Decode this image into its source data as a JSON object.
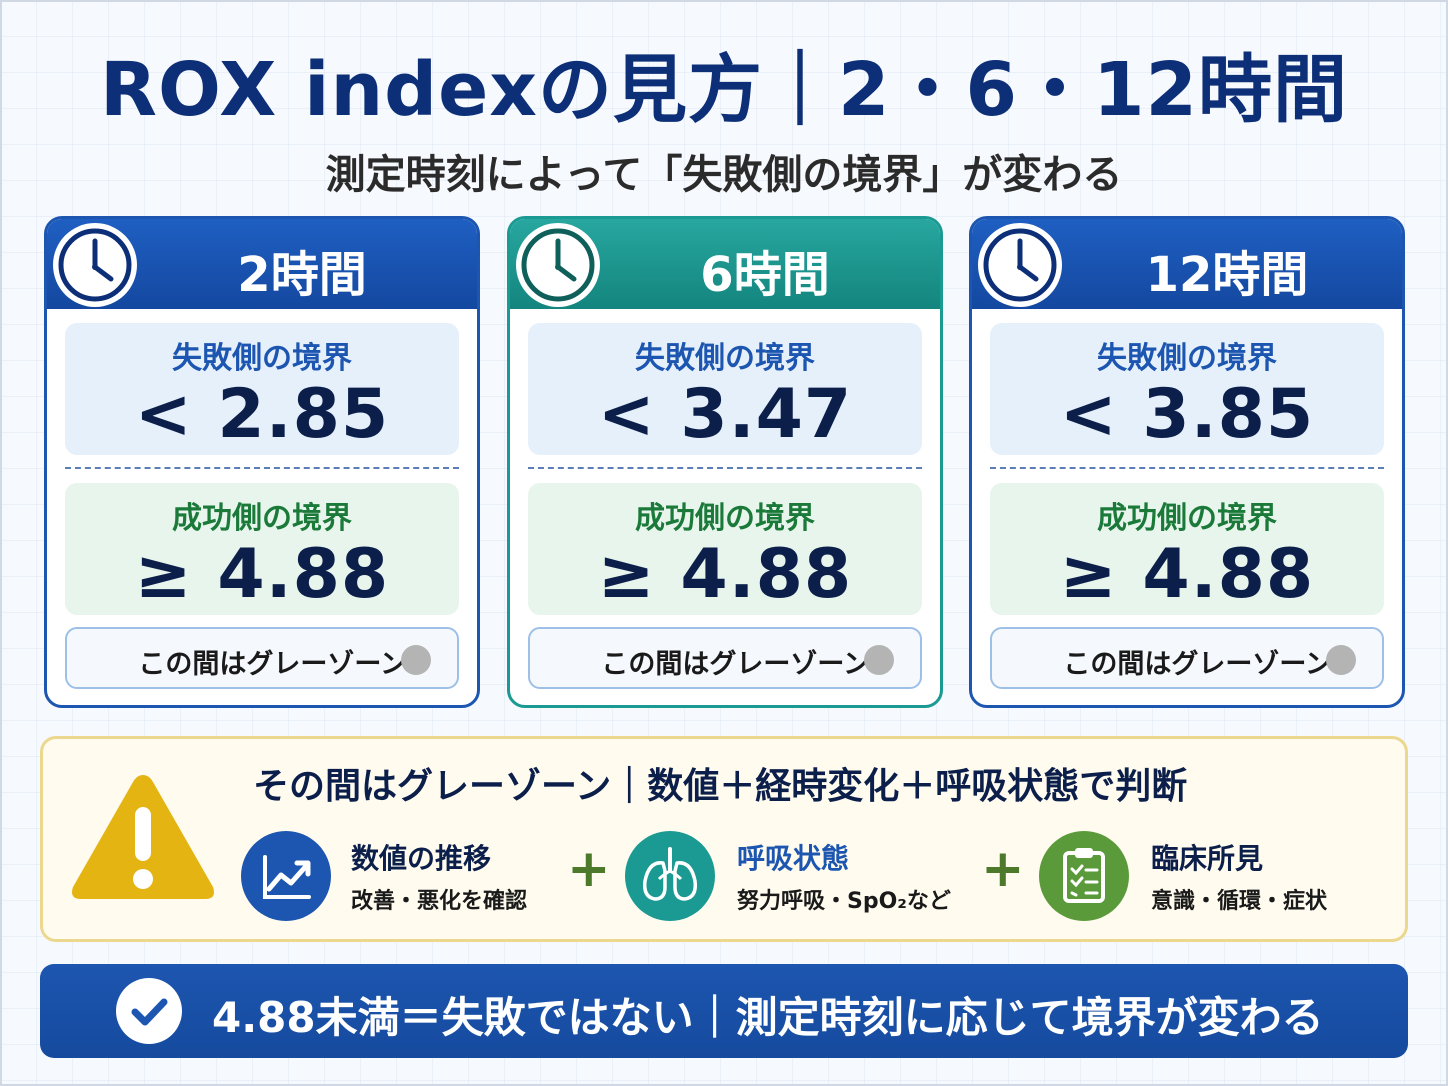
{
  "title": "ROX indexの見方｜2・6・12時間",
  "subtitle": "測定時刻によって「失敗側の境界」が変わる",
  "colors": {
    "navy": "#0d2f78",
    "blue": "#1d56b0",
    "teal": "#1a9a92",
    "fail_label": "#1d56b0",
    "success_label": "#1b7a3a",
    "warning": "#e3b412"
  },
  "cards": [
    {
      "title": "2時間",
      "icon": "clock-icon",
      "fail_label": "失敗側の境界",
      "fail_value": "< 2.85",
      "success_label": "成功側の境界",
      "success_value": "≥ 4.88",
      "gray_zone": "この間はグレーゾーン"
    },
    {
      "title": "6時間",
      "icon": "clock-icon",
      "fail_label": "失敗側の境界",
      "fail_value": "< 3.47",
      "success_label": "成功側の境界",
      "success_value": "≥ 4.88",
      "gray_zone": "この間はグレーゾーン"
    },
    {
      "title": "12時間",
      "icon": "clock-icon",
      "fail_label": "失敗側の境界",
      "fail_value": "< 3.85",
      "success_label": "成功側の境界",
      "success_value": "≥ 4.88",
      "gray_zone": "この間はグレーゾーン"
    }
  ],
  "gray_panel": {
    "heading": "その間はグレーゾーン｜数値＋経時変化＋呼吸状態で判断",
    "icon": "warning-icon",
    "factors": [
      {
        "icon": "trend-chart-icon",
        "title": "数値の推移",
        "subtitle": "改善・悪化を確認"
      },
      {
        "icon": "lungs-icon",
        "title": "呼吸状態",
        "subtitle": "努力呼吸・SpO₂など"
      },
      {
        "icon": "clipboard-icon",
        "title": "臨床所見",
        "subtitle": "意識・循環・症状"
      }
    ],
    "plus": "+"
  },
  "banner": {
    "icon": "checkmark-icon",
    "text": "4.88未満＝失敗ではない｜測定時刻に応じて境界が変わる"
  }
}
